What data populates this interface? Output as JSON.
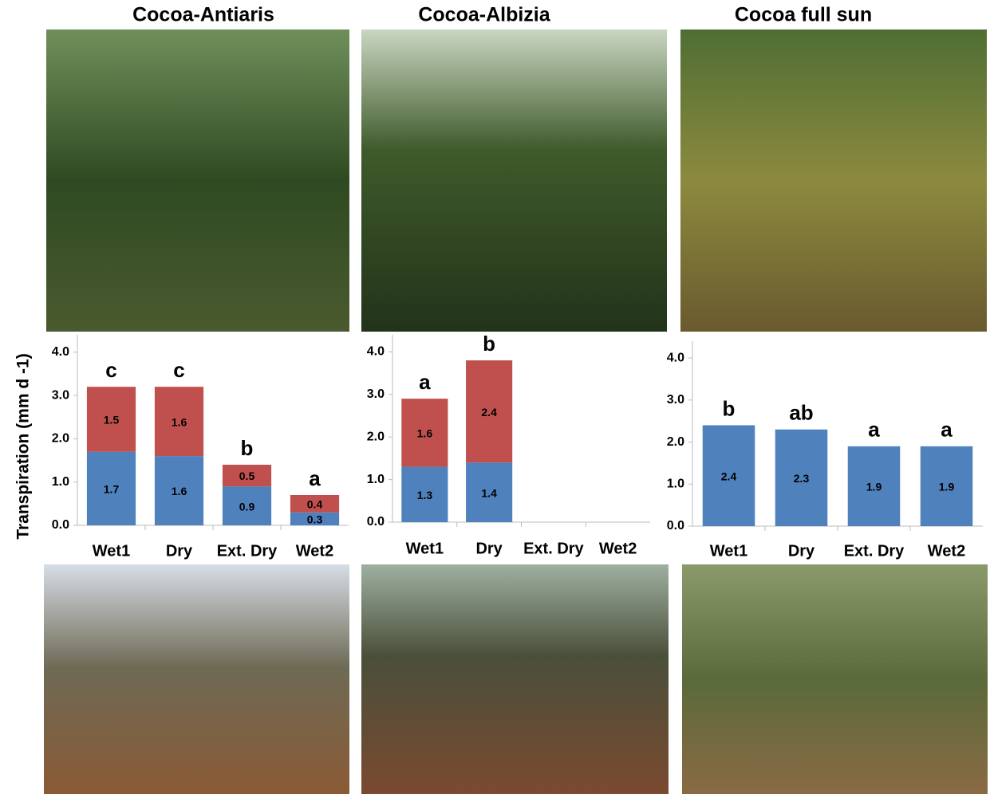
{
  "chart_data": [
    {
      "type": "bar",
      "title": "Cocoa-Antiaris",
      "ylabel": "Transpiration (mm d -1)",
      "categories": [
        "Wet1",
        "Dry",
        "Ext. Dry",
        "Wet2"
      ],
      "series": [
        {
          "color": "#4f81bd",
          "values": [
            1.7,
            1.6,
            0.9,
            0.3
          ]
        },
        {
          "color": "#c0504d",
          "values": [
            1.5,
            1.6,
            0.5,
            0.4
          ]
        }
      ],
      "annotations": [
        "c",
        "c",
        "b",
        "a"
      ],
      "ylim": [
        0,
        4.4
      ],
      "yticks": [
        {
          "value": 0,
          "label": "0.0"
        },
        {
          "value": 1,
          "label": "1.0"
        },
        {
          "value": 2,
          "label": "2.0"
        },
        {
          "value": 3,
          "label": "3.0"
        },
        {
          "value": 4,
          "label": "4.0"
        }
      ]
    },
    {
      "type": "bar",
      "title": "Cocoa-Albizia",
      "categories": [
        "Wet1",
        "Dry",
        "Ext. Dry",
        "Wet2"
      ],
      "series": [
        {
          "color": "#4f81bd",
          "values": [
            1.3,
            1.4,
            null,
            null
          ]
        },
        {
          "color": "#c0504d",
          "values": [
            1.6,
            2.4,
            null,
            null
          ]
        }
      ],
      "annotations": [
        "a",
        "b",
        null,
        null
      ],
      "ylim": [
        0,
        4.4
      ],
      "yticks": [
        {
          "value": 0,
          "label": "0.0"
        },
        {
          "value": 1,
          "label": "1.0"
        },
        {
          "value": 2,
          "label": "2.0"
        },
        {
          "value": 3,
          "label": "3.0"
        },
        {
          "value": 4,
          "label": "4.0"
        }
      ]
    },
    {
      "type": "bar",
      "title": "Cocoa full sun",
      "categories": [
        "Wet1",
        "Dry",
        "Ext. Dry",
        "Wet2"
      ],
      "series": [
        {
          "color": "#4f81bd",
          "values": [
            2.4,
            2.3,
            1.9,
            1.9
          ]
        }
      ],
      "annotations": [
        "b",
        "ab",
        "a",
        "a"
      ],
      "ylim": [
        0,
        4.4
      ],
      "yticks": [
        {
          "value": 0,
          "label": "0.0"
        },
        {
          "value": 1,
          "label": "1.0"
        },
        {
          "value": 2,
          "label": "2.0"
        },
        {
          "value": 3,
          "label": "3.0"
        },
        {
          "value": 4,
          "label": "4.0"
        }
      ]
    }
  ]
}
